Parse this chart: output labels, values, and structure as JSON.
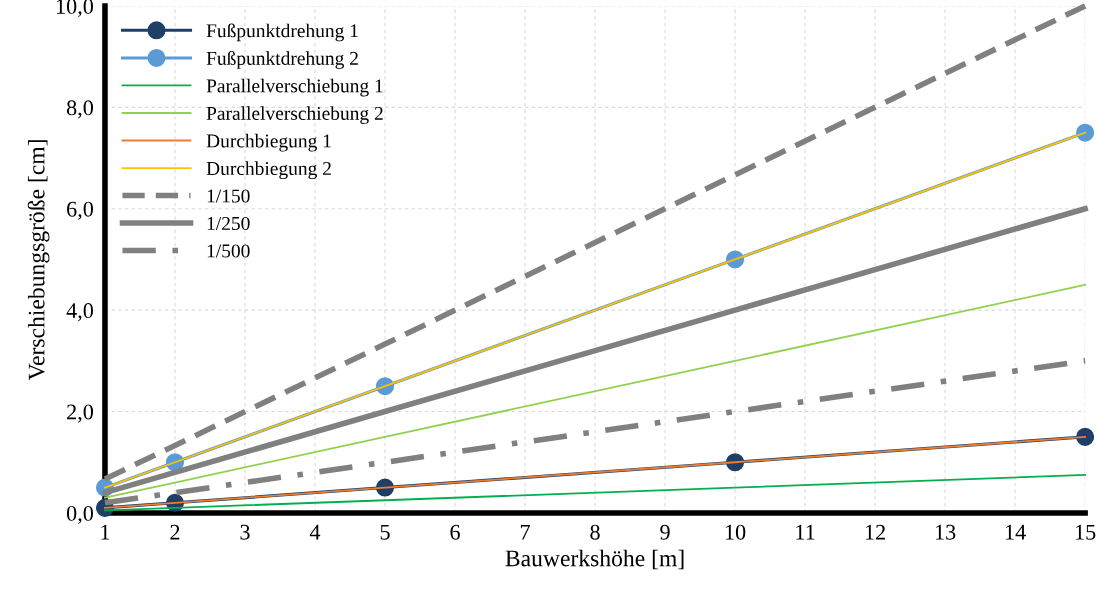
{
  "chart_data": {
    "type": "line",
    "xlabel": "Bauwerkshöhe [m]",
    "ylabel": "Verschiebungsgröße [cm]",
    "x": [
      1,
      2,
      5,
      10,
      15
    ],
    "xlim": [
      1,
      15
    ],
    "xticks": [
      1,
      2,
      3,
      4,
      5,
      6,
      7,
      8,
      9,
      10,
      11,
      12,
      13,
      14,
      15
    ],
    "ylim": [
      0,
      10
    ],
    "yticks": [
      {
        "value": 0,
        "label": "0,0"
      },
      {
        "value": 2,
        "label": "2,0"
      },
      {
        "value": 4,
        "label": "4,0"
      },
      {
        "value": 6,
        "label": "6,0"
      },
      {
        "value": 8,
        "label": "8,0"
      },
      {
        "value": 10,
        "label": "10,0"
      }
    ],
    "grid": true,
    "legend": "top left",
    "series": [
      {
        "name": "Fußpunktdrehung 1",
        "color": "#1f3f66",
        "values": [
          0.1,
          0.2,
          0.5,
          1.0,
          1.5
        ],
        "marker": "circle",
        "line_style": "solid"
      },
      {
        "name": "Fußpunktdrehung 2",
        "color": "#5b9bd5",
        "values": [
          0.5,
          1.0,
          2.5,
          5.0,
          7.5
        ],
        "marker": "circle",
        "line_style": "solid"
      },
      {
        "name": "Parallelverschiebung 1",
        "color": "#00b050",
        "values": [
          0.05,
          0.1,
          0.25,
          0.5,
          0.75
        ],
        "marker": "none",
        "line_style": "solid"
      },
      {
        "name": "Parallelverschiebung 2",
        "color": "#92d050",
        "values": [
          0.3,
          0.6,
          1.5,
          3.0,
          4.5
        ],
        "marker": "none",
        "line_style": "solid"
      },
      {
        "name": "Durchbiegung 1",
        "color": "#ed7d31",
        "values": [
          0.1,
          0.2,
          0.5,
          1.0,
          1.5
        ],
        "marker": "none",
        "line_style": "solid"
      },
      {
        "name": "Durchbiegung 2",
        "color": "#ffc000",
        "values": [
          0.5,
          1.0,
          2.5,
          5.0,
          7.5
        ],
        "marker": "none",
        "line_style": "solid"
      },
      {
        "name": "1/150",
        "color": "#808080",
        "values": [
          0.67,
          1.33,
          3.33,
          6.67,
          10.0
        ],
        "marker": "none",
        "line_style": "dashed"
      },
      {
        "name": "1/250",
        "color": "#808080",
        "values": [
          0.4,
          0.8,
          2.0,
          4.0,
          6.0
        ],
        "marker": "none",
        "line_style": "solid"
      },
      {
        "name": "1/500",
        "color": "#808080",
        "values": [
          0.2,
          0.4,
          1.0,
          2.0,
          3.0
        ],
        "marker": "none",
        "line_style": "dashdot"
      }
    ]
  }
}
